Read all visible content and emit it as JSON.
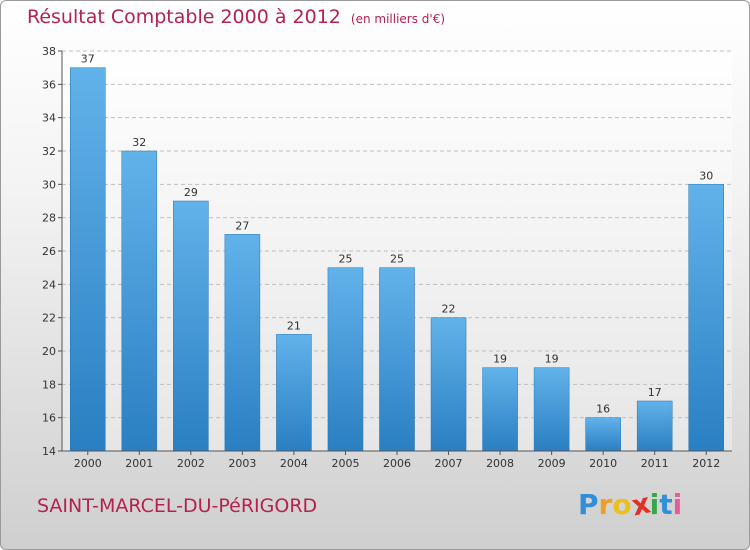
{
  "header": {
    "title": "Résultat Comptable 2000 à 2012",
    "subtitle": "(en milliers d'€)"
  },
  "footer": {
    "commune": "SAINT-MARCEL-DU-PéRIGORD",
    "logo_letters": [
      "P",
      "r",
      "o",
      "x",
      "i",
      "t",
      "i"
    ],
    "logo_colors": [
      "#2f8fd8",
      "#f0a020",
      "#e8c020",
      "#e0302a",
      "#36a84a",
      "#2f8fd8",
      "#e85a9a"
    ]
  },
  "colors": {
    "bar_top": "#62b2ea",
    "bar_bottom": "#2a7fc2",
    "grid": "#bfbfbf",
    "text": "#333333"
  },
  "chart_data": {
    "type": "bar",
    "categories": [
      "2000",
      "2001",
      "2002",
      "2003",
      "2004",
      "2005",
      "2006",
      "2007",
      "2008",
      "2009",
      "2010",
      "2011",
      "2012"
    ],
    "values": [
      37,
      32,
      29,
      27,
      21,
      25,
      25,
      22,
      19,
      19,
      16,
      17,
      30
    ],
    "yticks": [
      14,
      16,
      18,
      20,
      22,
      24,
      26,
      28,
      30,
      32,
      34,
      36,
      38
    ],
    "ylim": [
      14,
      38
    ],
    "grid": true,
    "title": "Résultat Comptable 2000 à 2012",
    "xlabel": "",
    "ylabel": ""
  }
}
